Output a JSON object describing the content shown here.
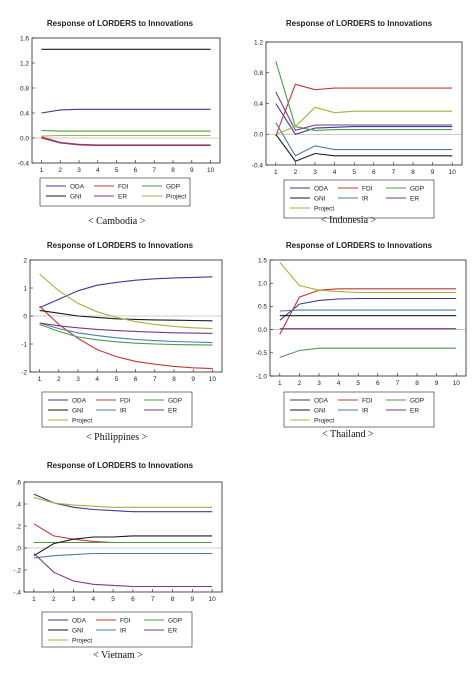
{
  "series_colors": {
    "ODA": "#3b3b9a",
    "FDI": "#c03a3a",
    "GDP": "#4f9a4f",
    "GNI": "#1a1a1a",
    "IR": "#4a7fa8",
    "ER": "#7a3a8a",
    "Project": "#a8b040"
  },
  "chart_data": [
    {
      "type": "line",
      "title": "Response of LORDERS to Innovations",
      "caption": "< Cambodia >",
      "x": [
        1,
        2,
        3,
        4,
        5,
        6,
        7,
        8,
        9,
        10
      ],
      "ylim": [
        -0.4,
        1.6
      ],
      "yticks": [
        -0.4,
        0.0,
        0.4,
        0.8,
        1.2,
        1.6
      ],
      "ytick_labels": [
        "-0.4",
        "0.0",
        "0.4",
        "0.8",
        "1.2",
        "1.6"
      ],
      "series": [
        {
          "name": "ODA",
          "values": [
            0.4,
            0.45,
            0.46,
            0.46,
            0.46,
            0.46,
            0.46,
            0.46,
            0.46,
            0.46
          ]
        },
        {
          "name": "FDI",
          "values": [
            0.02,
            -0.07,
            -0.1,
            -0.11,
            -0.11,
            -0.11,
            -0.11,
            -0.11,
            -0.11,
            -0.11
          ]
        },
        {
          "name": "GDP",
          "values": [
            0.12,
            0.11,
            0.11,
            0.11,
            0.11,
            0.11,
            0.11,
            0.11,
            0.11,
            0.11
          ]
        },
        {
          "name": "GNI",
          "values": [
            1.42,
            1.42,
            1.42,
            1.42,
            1.42,
            1.42,
            1.42,
            1.42,
            1.42,
            1.42
          ]
        },
        {
          "name": "Project",
          "values": [
            0.03,
            0.04,
            0.04,
            0.04,
            0.04,
            0.04,
            0.04,
            0.04,
            0.04,
            0.04
          ]
        },
        {
          "name": "ER",
          "values": [
            0.0,
            -0.08,
            -0.11,
            -0.12,
            -0.12,
            -0.12,
            -0.12,
            -0.12,
            -0.12,
            -0.12
          ]
        }
      ],
      "legend": [
        [
          "ODA",
          "FDI",
          "GDP"
        ],
        [
          "GNI",
          "ER",
          "Project"
        ]
      ]
    },
    {
      "type": "line",
      "title": "Response of LORDERS to Innovations",
      "caption": "< Indonesia >",
      "x": [
        1,
        2,
        3,
        4,
        5,
        6,
        7,
        8,
        9,
        10
      ],
      "ylim": [
        -0.4,
        1.2
      ],
      "yticks": [
        -0.4,
        0.0,
        0.4,
        0.8,
        1.2
      ],
      "ytick_labels": [
        "-0.4",
        "0.0",
        "0.4",
        "0.8",
        "1.2"
      ],
      "series": [
        {
          "name": "ODA",
          "values": [
            0.4,
            0.0,
            0.08,
            0.09,
            0.1,
            0.1,
            0.1,
            0.1,
            0.1,
            0.1
          ]
        },
        {
          "name": "FDI",
          "values": [
            -0.02,
            0.65,
            0.58,
            0.6,
            0.6,
            0.6,
            0.6,
            0.6,
            0.6,
            0.6
          ]
        },
        {
          "name": "GDP",
          "values": [
            0.95,
            0.1,
            0.05,
            0.06,
            0.06,
            0.06,
            0.06,
            0.06,
            0.06,
            0.06
          ]
        },
        {
          "name": "GNI",
          "values": [
            0.0,
            -0.35,
            -0.25,
            -0.28,
            -0.28,
            -0.28,
            -0.28,
            -0.28,
            -0.28,
            -0.28
          ]
        },
        {
          "name": "IR",
          "values": [
            0.15,
            -0.28,
            -0.15,
            -0.2,
            -0.2,
            -0.2,
            -0.2,
            -0.2,
            -0.2,
            -0.2
          ]
        },
        {
          "name": "ER",
          "values": [
            0.55,
            0.05,
            0.12,
            0.12,
            0.12,
            0.12,
            0.12,
            0.12,
            0.12,
            0.12
          ]
        },
        {
          "name": "Project",
          "values": [
            0.0,
            0.1,
            0.35,
            0.28,
            0.3,
            0.3,
            0.3,
            0.3,
            0.3,
            0.3
          ]
        }
      ],
      "legend": [
        [
          "ODA",
          "FDI",
          "GDP"
        ],
        [
          "GNI",
          "IR",
          "ER"
        ],
        [
          "Project"
        ]
      ]
    },
    {
      "type": "line",
      "title": "Response of LORDERS to Innovations",
      "caption": "< Philippines >",
      "x": [
        1,
        2,
        3,
        4,
        5,
        6,
        7,
        8,
        9,
        10
      ],
      "ylim": [
        -2,
        2
      ],
      "yticks": [
        -2,
        -1,
        0,
        1,
        2
      ],
      "ytick_labels": [
        "-2",
        "-1",
        "0",
        "1",
        "2"
      ],
      "series": [
        {
          "name": "ODA",
          "values": [
            0.3,
            0.6,
            0.9,
            1.1,
            1.2,
            1.28,
            1.33,
            1.36,
            1.38,
            1.4
          ]
        },
        {
          "name": "FDI",
          "values": [
            0.35,
            -0.3,
            -0.8,
            -1.2,
            -1.45,
            -1.62,
            -1.72,
            -1.8,
            -1.85,
            -1.88
          ]
        },
        {
          "name": "GDP",
          "values": [
            -0.3,
            -0.55,
            -0.75,
            -0.85,
            -0.92,
            -0.97,
            -1.0,
            -1.02,
            -1.03,
            -1.04
          ]
        },
        {
          "name": "GNI",
          "values": [
            0.2,
            0.1,
            0.0,
            -0.05,
            -0.1,
            -0.12,
            -0.14,
            -0.15,
            -0.16,
            -0.17
          ]
        },
        {
          "name": "IR",
          "values": [
            -0.25,
            -0.45,
            -0.6,
            -0.7,
            -0.78,
            -0.84,
            -0.88,
            -0.91,
            -0.93,
            -0.95
          ]
        },
        {
          "name": "ER",
          "values": [
            -0.25,
            -0.35,
            -0.42,
            -0.48,
            -0.52,
            -0.55,
            -0.58,
            -0.6,
            -0.61,
            -0.62
          ]
        },
        {
          "name": "Project",
          "values": [
            1.5,
            0.9,
            0.45,
            0.15,
            -0.05,
            -0.2,
            -0.3,
            -0.37,
            -0.42,
            -0.45
          ]
        }
      ],
      "legend": [
        [
          "ODA",
          "FDI",
          "GDP"
        ],
        [
          "GNI",
          "IR",
          "ER"
        ],
        [
          "Project"
        ]
      ]
    },
    {
      "type": "line",
      "title": "Response of LORDERS to Innovations",
      "caption": "< Thailand >",
      "x": [
        1,
        2,
        3,
        4,
        5,
        6,
        7,
        8,
        9,
        10
      ],
      "ylim": [
        -1.0,
        1.5
      ],
      "yticks": [
        -1.0,
        -0.5,
        0.0,
        0.5,
        1.0,
        1.5
      ],
      "ytick_labels": [
        "-1.0",
        "-0.5",
        "0.0",
        "0.5",
        "1.0",
        "1.5"
      ],
      "series": [
        {
          "name": "ODA",
          "values": [
            0.2,
            0.55,
            0.63,
            0.66,
            0.67,
            0.67,
            0.67,
            0.67,
            0.67,
            0.67
          ]
        },
        {
          "name": "FDI",
          "values": [
            -0.1,
            0.7,
            0.85,
            0.88,
            0.88,
            0.88,
            0.88,
            0.88,
            0.88,
            0.88
          ]
        },
        {
          "name": "GDP",
          "values": [
            -0.6,
            -0.45,
            -0.4,
            -0.4,
            -0.4,
            -0.4,
            -0.4,
            -0.4,
            -0.4,
            -0.4
          ]
        },
        {
          "name": "GNI",
          "values": [
            0.3,
            0.3,
            0.3,
            0.3,
            0.3,
            0.3,
            0.3,
            0.3,
            0.3,
            0.3
          ]
        },
        {
          "name": "IR",
          "values": [
            0.4,
            0.42,
            0.42,
            0.42,
            0.42,
            0.42,
            0.42,
            0.42,
            0.42,
            0.42
          ]
        },
        {
          "name": "ER",
          "values": [
            0.02,
            0.02,
            0.02,
            0.02,
            0.02,
            0.02,
            0.02,
            0.02,
            0.02,
            0.02
          ]
        },
        {
          "name": "Project",
          "values": [
            1.45,
            0.95,
            0.85,
            0.82,
            0.8,
            0.8,
            0.8,
            0.8,
            0.8,
            0.8
          ]
        }
      ],
      "legend": [
        [
          "ODA",
          "FDI",
          "GDP"
        ],
        [
          "GNI",
          "IR",
          "ER"
        ],
        [
          "Project"
        ]
      ]
    },
    {
      "type": "line",
      "title": "Response of LORDERS to Innovations",
      "caption": "< Vietnam >",
      "x": [
        1,
        2,
        3,
        4,
        5,
        6,
        7,
        8,
        9,
        10
      ],
      "ylim": [
        -0.4,
        0.6
      ],
      "yticks": [
        -0.4,
        -0.2,
        0.0,
        0.2,
        0.4,
        0.6
      ],
      "ytick_labels": [
        "-.4",
        "-.2",
        ".0",
        ".2",
        ".4",
        ".6"
      ],
      "series": [
        {
          "name": "ODA",
          "values": [
            0.49,
            0.41,
            0.37,
            0.35,
            0.34,
            0.33,
            0.33,
            0.33,
            0.33,
            0.33
          ]
        },
        {
          "name": "FDI",
          "values": [
            0.22,
            0.11,
            0.08,
            0.06,
            0.05,
            0.05,
            0.05,
            0.05,
            0.05,
            0.05
          ]
        },
        {
          "name": "GDP",
          "values": [
            0.05,
            0.05,
            0.05,
            0.05,
            0.05,
            0.05,
            0.05,
            0.05,
            0.05,
            0.05
          ]
        },
        {
          "name": "GNI",
          "values": [
            -0.07,
            0.04,
            0.08,
            0.1,
            0.1,
            0.11,
            0.11,
            0.11,
            0.11,
            0.11
          ]
        },
        {
          "name": "IR",
          "values": [
            -0.09,
            -0.07,
            -0.06,
            -0.05,
            -0.05,
            -0.05,
            -0.05,
            -0.05,
            -0.05,
            -0.05
          ]
        },
        {
          "name": "ER",
          "values": [
            -0.05,
            -0.22,
            -0.3,
            -0.33,
            -0.34,
            -0.35,
            -0.35,
            -0.35,
            -0.35,
            -0.35
          ]
        },
        {
          "name": "Project",
          "values": [
            0.46,
            0.41,
            0.39,
            0.38,
            0.37,
            0.37,
            0.37,
            0.37,
            0.37,
            0.37
          ]
        }
      ],
      "legend": [
        [
          "ODA",
          "FDI",
          "GDP"
        ],
        [
          "GNI",
          "IR",
          "ER"
        ],
        [
          "Project"
        ]
      ]
    }
  ]
}
